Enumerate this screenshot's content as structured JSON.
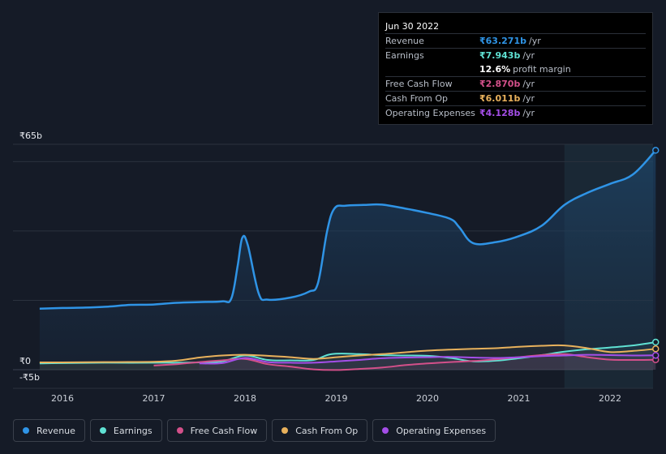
{
  "chart_data": {
    "type": "area",
    "y_axis": {
      "top_label": "₹65b",
      "zero_label": "₹0",
      "bottom_label": "-₹5b",
      "ylim": [
        -5,
        65
      ]
    },
    "x_axis": {
      "tick_labels": [
        "2016",
        "2017",
        "2018",
        "2019",
        "2020",
        "2021",
        "2022"
      ],
      "xlim": [
        2015.7,
        2022.5
      ]
    },
    "grid": true,
    "forecast_region_start": 2021.5,
    "series": [
      {
        "name": "Revenue",
        "color": "#2f94e6",
        "filled": true,
        "points": [
          [
            2015.75,
            17.6
          ],
          [
            2016.0,
            17.8
          ],
          [
            2016.25,
            17.9
          ],
          [
            2016.5,
            18.2
          ],
          [
            2016.75,
            18.7
          ],
          [
            2017.0,
            18.8
          ],
          [
            2017.25,
            19.3
          ],
          [
            2017.5,
            19.5
          ],
          [
            2017.75,
            19.7
          ],
          [
            2017.85,
            20.5
          ],
          [
            2017.92,
            30
          ],
          [
            2017.97,
            38.0
          ],
          [
            2018.03,
            36
          ],
          [
            2018.15,
            22
          ],
          [
            2018.25,
            20.2
          ],
          [
            2018.5,
            20.8
          ],
          [
            2018.7,
            22.5
          ],
          [
            2018.8,
            25
          ],
          [
            2018.9,
            40
          ],
          [
            2018.98,
            46.5
          ],
          [
            2019.1,
            47.3
          ],
          [
            2019.3,
            47.5
          ],
          [
            2019.5,
            47.6
          ],
          [
            2019.75,
            46.5
          ],
          [
            2020.0,
            45.2
          ],
          [
            2020.25,
            43.5
          ],
          [
            2020.35,
            41
          ],
          [
            2020.5,
            36.5
          ],
          [
            2020.75,
            36.8
          ],
          [
            2021.0,
            38.5
          ],
          [
            2021.25,
            41.5
          ],
          [
            2021.5,
            47.5
          ],
          [
            2021.75,
            51.0
          ],
          [
            2022.0,
            53.6
          ],
          [
            2022.25,
            56.3
          ],
          [
            2022.5,
            63.271
          ]
        ]
      },
      {
        "name": "Earnings",
        "color": "#5fe1d3",
        "filled": false,
        "points": [
          [
            2015.75,
            1.8
          ],
          [
            2016.0,
            1.9
          ],
          [
            2016.5,
            2.0
          ],
          [
            2017.0,
            2.0
          ],
          [
            2017.5,
            2.1
          ],
          [
            2017.75,
            2.4
          ],
          [
            2018.0,
            4.1
          ],
          [
            2018.25,
            2.8
          ],
          [
            2018.5,
            2.7
          ],
          [
            2018.75,
            2.8
          ],
          [
            2018.95,
            4.5
          ],
          [
            2019.25,
            4.5
          ],
          [
            2019.5,
            4.2
          ],
          [
            2019.75,
            4.1
          ],
          [
            2020.0,
            4.0
          ],
          [
            2020.25,
            3.4
          ],
          [
            2020.5,
            2.4
          ],
          [
            2020.75,
            2.6
          ],
          [
            2021.0,
            3.3
          ],
          [
            2021.25,
            4.2
          ],
          [
            2021.5,
            5.2
          ],
          [
            2021.75,
            5.9
          ],
          [
            2022.0,
            6.4
          ],
          [
            2022.25,
            7.0
          ],
          [
            2022.5,
            7.943
          ]
        ]
      },
      {
        "name": "Free Cash Flow",
        "color": "#d3508a",
        "filled": false,
        "points": [
          [
            2017.0,
            1.2
          ],
          [
            2017.25,
            1.6
          ],
          [
            2017.5,
            2.2
          ],
          [
            2017.75,
            2.7
          ],
          [
            2018.0,
            3.1
          ],
          [
            2018.25,
            1.6
          ],
          [
            2018.5,
            0.9
          ],
          [
            2018.75,
            0.1
          ],
          [
            2019.0,
            -0.1
          ],
          [
            2019.25,
            0.2
          ],
          [
            2019.5,
            0.6
          ],
          [
            2019.75,
            1.3
          ],
          [
            2020.0,
            1.8
          ],
          [
            2020.25,
            2.2
          ],
          [
            2020.5,
            2.5
          ],
          [
            2020.75,
            3.0
          ],
          [
            2021.0,
            3.6
          ],
          [
            2021.25,
            4.2
          ],
          [
            2021.5,
            4.5
          ],
          [
            2021.75,
            3.6
          ],
          [
            2022.0,
            2.9
          ],
          [
            2022.25,
            2.8
          ],
          [
            2022.5,
            2.87
          ]
        ]
      },
      {
        "name": "Cash From Op",
        "color": "#e8b15c",
        "filled": false,
        "points": [
          [
            2015.75,
            2.1
          ],
          [
            2016.0,
            2.1
          ],
          [
            2016.5,
            2.2
          ],
          [
            2017.0,
            2.3
          ],
          [
            2017.25,
            2.6
          ],
          [
            2017.5,
            3.5
          ],
          [
            2017.75,
            4.1
          ],
          [
            2018.0,
            4.3
          ],
          [
            2018.25,
            4.0
          ],
          [
            2018.5,
            3.6
          ],
          [
            2018.75,
            3.1
          ],
          [
            2019.0,
            3.6
          ],
          [
            2019.25,
            4.1
          ],
          [
            2019.5,
            4.5
          ],
          [
            2019.75,
            5.0
          ],
          [
            2020.0,
            5.5
          ],
          [
            2020.25,
            5.8
          ],
          [
            2020.5,
            6.0
          ],
          [
            2020.75,
            6.2
          ],
          [
            2021.0,
            6.6
          ],
          [
            2021.25,
            6.9
          ],
          [
            2021.5,
            7.0
          ],
          [
            2021.75,
            6.2
          ],
          [
            2022.0,
            5.1
          ],
          [
            2022.25,
            5.4
          ],
          [
            2022.5,
            6.011
          ]
        ]
      },
      {
        "name": "Operating Expenses",
        "color": "#a44ee8",
        "filled": false,
        "points": [
          [
            2017.5,
            1.8
          ],
          [
            2017.75,
            1.9
          ],
          [
            2018.0,
            3.4
          ],
          [
            2018.25,
            2.2
          ],
          [
            2018.5,
            2.0
          ],
          [
            2018.75,
            2.0
          ],
          [
            2019.0,
            2.4
          ],
          [
            2019.25,
            2.8
          ],
          [
            2019.5,
            3.3
          ],
          [
            2019.75,
            3.5
          ],
          [
            2020.0,
            3.6
          ],
          [
            2020.25,
            3.7
          ],
          [
            2020.5,
            3.5
          ],
          [
            2020.75,
            3.4
          ],
          [
            2021.0,
            3.6
          ],
          [
            2021.25,
            3.9
          ],
          [
            2021.5,
            4.1
          ],
          [
            2021.75,
            4.3
          ],
          [
            2022.0,
            4.2
          ],
          [
            2022.25,
            4.1
          ],
          [
            2022.5,
            4.128
          ]
        ]
      }
    ]
  },
  "tooltip": {
    "date": "Jun 30 2022",
    "rows": [
      {
        "label": "Revenue",
        "value": "₹63.271b",
        "unit": "/yr",
        "color": "#2f94e6"
      },
      {
        "label": "Earnings",
        "value": "₹7.943b",
        "unit": "/yr",
        "color": "#5fe1d3"
      },
      {
        "label": "",
        "value": "12.6%",
        "unit": "profit margin",
        "color": "#ffffff"
      },
      {
        "label": "Free Cash Flow",
        "value": "₹2.870b",
        "unit": "/yr",
        "color": "#d3508a"
      },
      {
        "label": "Cash From Op",
        "value": "₹6.011b",
        "unit": "/yr",
        "color": "#e8b15c"
      },
      {
        "label": "Operating Expenses",
        "value": "₹4.128b",
        "unit": "/yr",
        "color": "#a44ee8"
      }
    ]
  },
  "legend": [
    {
      "label": "Revenue",
      "color": "#2f94e6"
    },
    {
      "label": "Earnings",
      "color": "#5fe1d3"
    },
    {
      "label": "Free Cash Flow",
      "color": "#d3508a"
    },
    {
      "label": "Cash From Op",
      "color": "#e8b15c"
    },
    {
      "label": "Operating Expenses",
      "color": "#a44ee8"
    }
  ]
}
